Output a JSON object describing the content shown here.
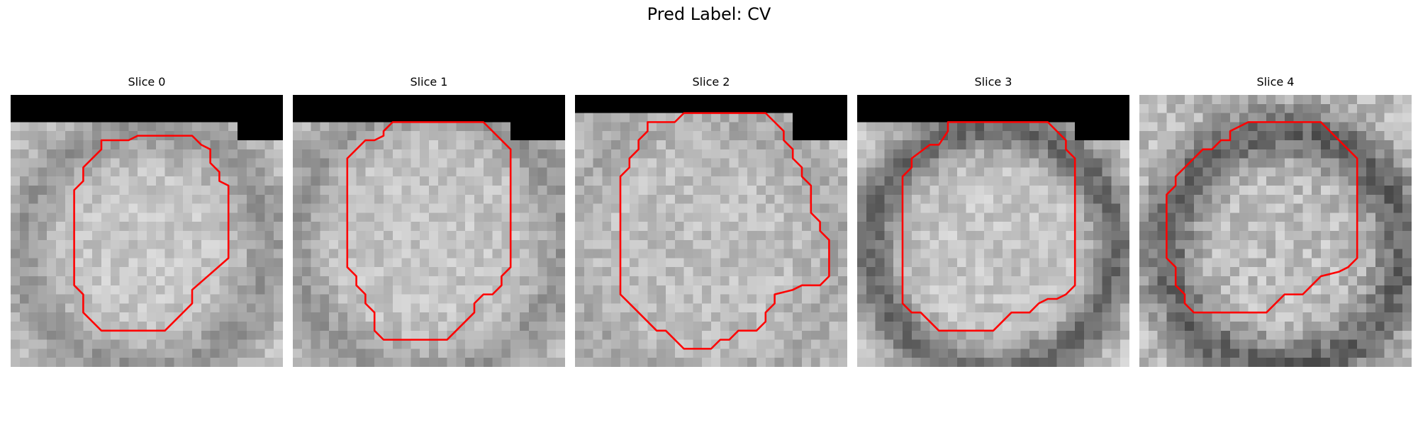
{
  "figure": {
    "title": "Pred Label: CV"
  },
  "colors": {
    "contour": "#ff0000",
    "mask": "#000000"
  },
  "slices": [
    {
      "title": "Slice 0",
      "mean": 198,
      "ring": 150,
      "ringWidth": 3.2,
      "radius": 13.5,
      "cx": 15,
      "cy": 17,
      "noise": 22,
      "seed": 11,
      "mask": [
        [
          0,
          0,
          30,
          3
        ],
        [
          25,
          3,
          30,
          5
        ]
      ],
      "contour": [
        [
          10,
          5
        ],
        [
          13,
          5
        ],
        [
          14,
          4.5
        ],
        [
          20,
          4.5
        ],
        [
          21,
          5.5
        ],
        [
          22,
          6
        ],
        [
          22,
          7.5
        ],
        [
          23,
          8.5
        ],
        [
          23,
          9.5
        ],
        [
          24,
          10
        ],
        [
          24,
          18
        ],
        [
          20,
          21.5
        ],
        [
          20,
          23
        ],
        [
          17,
          26
        ],
        [
          10,
          26
        ],
        [
          8,
          24
        ],
        [
          8,
          22
        ],
        [
          7,
          21
        ],
        [
          7,
          10.5
        ],
        [
          8,
          9.5
        ],
        [
          8,
          8
        ],
        [
          10,
          6
        ]
      ]
    },
    {
      "title": "Slice 1",
      "mean": 196,
      "ring": 150,
      "ringWidth": 3.0,
      "radius": 15,
      "cx": 15,
      "cy": 16,
      "noise": 22,
      "seed": 23,
      "mask": [
        [
          0,
          0,
          30,
          3
        ],
        [
          24,
          3,
          30,
          5
        ]
      ],
      "contour": [
        [
          11,
          3
        ],
        [
          21,
          3
        ],
        [
          24,
          6
        ],
        [
          24,
          19
        ],
        [
          23,
          20
        ],
        [
          23,
          21
        ],
        [
          22,
          22
        ],
        [
          21,
          22
        ],
        [
          20,
          23
        ],
        [
          20,
          24
        ],
        [
          17,
          27
        ],
        [
          10,
          27
        ],
        [
          9,
          26
        ],
        [
          9,
          24
        ],
        [
          8,
          23
        ],
        [
          8,
          22
        ],
        [
          7,
          21
        ],
        [
          7,
          20
        ],
        [
          6,
          19
        ],
        [
          6,
          7
        ],
        [
          8,
          5
        ],
        [
          9,
          5
        ],
        [
          10,
          4.5
        ],
        [
          10,
          4
        ]
      ]
    },
    {
      "title": "Slice 2",
      "mean": 190,
      "ring": 170,
      "ringWidth": 3.0,
      "radius": 15,
      "cx": 14,
      "cy": 17,
      "noise": 24,
      "seed": 37,
      "mask": [
        [
          0,
          0,
          30,
          2
        ],
        [
          24,
          2,
          30,
          5
        ]
      ],
      "contour": [
        [
          12,
          2
        ],
        [
          21,
          2
        ],
        [
          22,
          3
        ],
        [
          23,
          4
        ],
        [
          23,
          5
        ],
        [
          24,
          6
        ],
        [
          24,
          7
        ],
        [
          25,
          8
        ],
        [
          25,
          9
        ],
        [
          26,
          10
        ],
        [
          26,
          13
        ],
        [
          27,
          14
        ],
        [
          27,
          15
        ],
        [
          28,
          16
        ],
        [
          28,
          20
        ],
        [
          27,
          21
        ],
        [
          25,
          21
        ],
        [
          24,
          21.5
        ],
        [
          22,
          22
        ],
        [
          22,
          23
        ],
        [
          21,
          24
        ],
        [
          21,
          25
        ],
        [
          20,
          26
        ],
        [
          18,
          26
        ],
        [
          17,
          27
        ],
        [
          16,
          27
        ],
        [
          15,
          28
        ],
        [
          12,
          28
        ],
        [
          10,
          26
        ],
        [
          9,
          26
        ],
        [
          5,
          22
        ],
        [
          5,
          9
        ],
        [
          6,
          8
        ],
        [
          6,
          7
        ],
        [
          7,
          6
        ],
        [
          7,
          5
        ],
        [
          8,
          4
        ],
        [
          8,
          3
        ],
        [
          11,
          3
        ]
      ]
    },
    {
      "title": "Slice 3",
      "mean": 196,
      "ring": 105,
      "ringWidth": 2.6,
      "radius": 13.5,
      "cx": 15,
      "cy": 17,
      "noise": 24,
      "seed": 51,
      "mask": [
        [
          0,
          0,
          30,
          3
        ],
        [
          24,
          3,
          30,
          5
        ]
      ],
      "contour": [
        [
          10,
          3
        ],
        [
          21,
          3
        ],
        [
          23,
          5
        ],
        [
          23,
          6
        ],
        [
          24,
          7
        ],
        [
          24,
          21
        ],
        [
          23,
          22
        ],
        [
          22,
          22.5
        ],
        [
          21,
          22.5
        ],
        [
          20,
          23
        ],
        [
          19,
          24
        ],
        [
          17,
          24
        ],
        [
          15,
          26
        ],
        [
          9,
          26
        ],
        [
          7,
          24
        ],
        [
          6,
          24
        ],
        [
          5,
          23
        ],
        [
          5,
          9
        ],
        [
          6,
          8
        ],
        [
          6,
          7
        ],
        [
          8,
          5.5
        ],
        [
          9,
          5.5
        ],
        [
          10,
          4
        ]
      ]
    },
    {
      "title": "Slice 4",
      "mean": 190,
      "ring": 100,
      "ringWidth": 3.0,
      "radius": 13,
      "cx": 16,
      "cy": 17,
      "noise": 30,
      "seed": 67,
      "mask": [],
      "contour": [
        [
          12,
          3
        ],
        [
          20,
          3
        ],
        [
          24,
          7
        ],
        [
          24,
          18
        ],
        [
          23,
          19
        ],
        [
          22,
          19.5
        ],
        [
          20,
          20
        ],
        [
          19,
          21
        ],
        [
          18,
          22
        ],
        [
          16,
          22
        ],
        [
          14,
          24
        ],
        [
          6,
          24
        ],
        [
          5,
          23
        ],
        [
          5,
          22
        ],
        [
          4,
          21
        ],
        [
          4,
          19
        ],
        [
          3,
          18
        ],
        [
          3,
          11
        ],
        [
          4,
          10
        ],
        [
          4,
          9
        ],
        [
          5,
          8
        ],
        [
          6,
          7
        ],
        [
          7,
          6
        ],
        [
          8,
          6
        ],
        [
          9,
          5
        ],
        [
          10,
          5
        ],
        [
          10,
          4
        ]
      ]
    }
  ]
}
